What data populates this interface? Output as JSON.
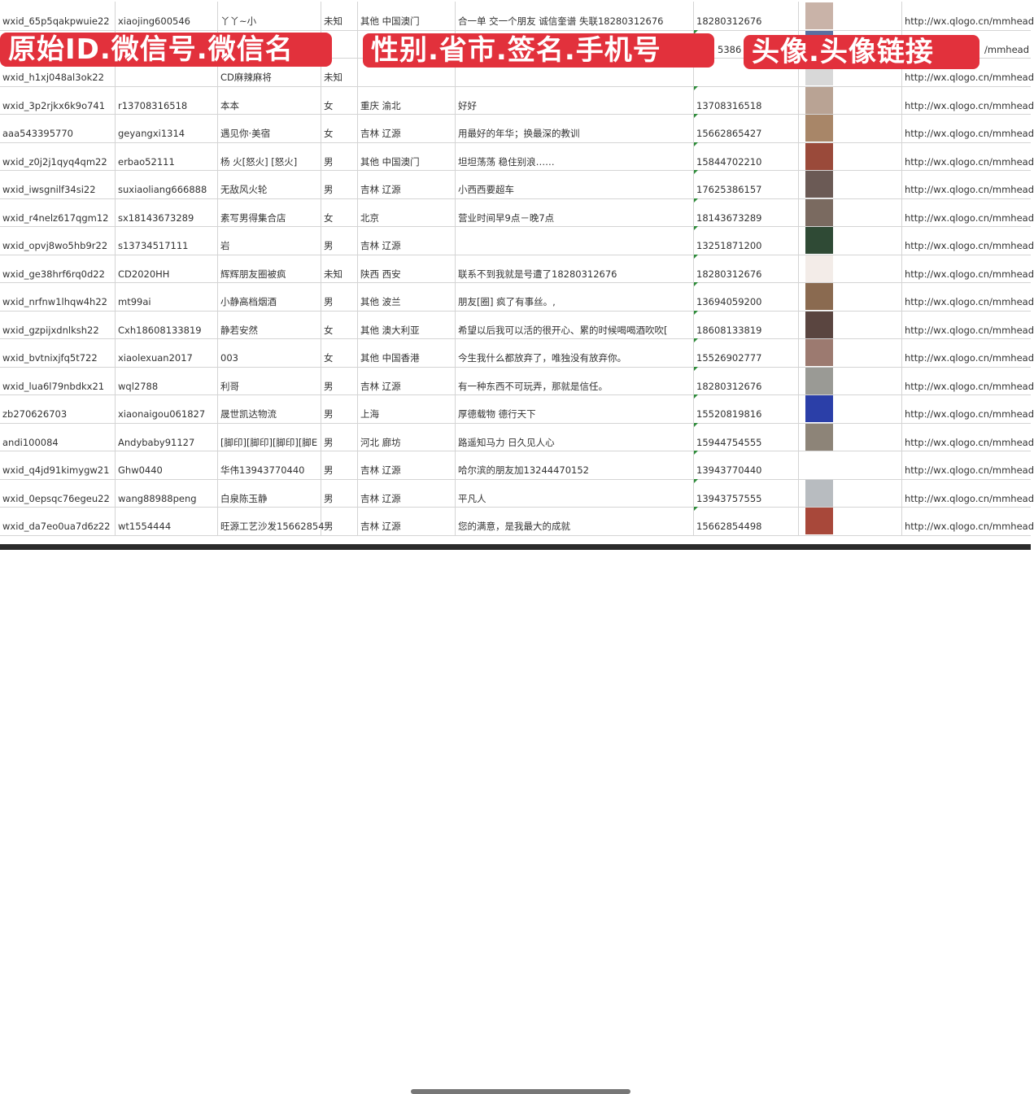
{
  "banners": [
    "原始ID.微信号.微信名",
    "性别.省市.签名.手机号",
    "头像.头像链接"
  ],
  "colors": {
    "banner": "#e2313c",
    "grid_line": "#d4d4d4",
    "text_marker": "#2e8b3a"
  },
  "rows": [
    {
      "id": "wxid_65p5qakpwuie22",
      "wxid": "xiaojing600546",
      "name": "丫丫~小",
      "gender": "未知",
      "region": "其他 中国澳门",
      "signature": "合一单 交一个朋友 诚信奎谱 失联18280312676",
      "phone": "18280312676",
      "avatar_color": "#c9b3a8",
      "url": "http://wx.qlogo.cn/mmhead"
    },
    {
      "id": "",
      "wxid": "",
      "name": "",
      "gender": "",
      "region": "",
      "signature": "",
      "phone": "5386",
      "avatar_color": "#5a6fa0",
      "url": "/mmhead"
    },
    {
      "id": "wxid_h1xj048al3ok22",
      "wxid": "",
      "name": "CD麻辣麻将",
      "gender": "未知",
      "region": "",
      "signature": "",
      "phone": "",
      "avatar_color": "#d8d8d8",
      "url": "http://wx.qlogo.cn/mmhead"
    },
    {
      "id": "wxid_3p2rjkx6k9o741",
      "wxid": "r13708316518",
      "name": "本本",
      "gender": "女",
      "region": "重庆 渝北",
      "signature": "好好",
      "phone": "13708316518",
      "avatar_color": "#b9a394",
      "url": "http://wx.qlogo.cn/mmhead"
    },
    {
      "id": "aaa543395770",
      "wxid": "geyangxi1314",
      "name": "遇见你·美宿",
      "gender": "女",
      "region": "吉林 辽源",
      "signature": "用最好的年华；换最深的教训",
      "phone": "15662865427",
      "avatar_color": "#a88668",
      "url": "http://wx.qlogo.cn/mmhead"
    },
    {
      "id": "wxid_z0j2j1qyq4qm22",
      "wxid": "erbao52111",
      "name": "杨 火[怒火] [怒火]",
      "gender": "男",
      "region": "其他 中国澳门",
      "signature": "坦坦荡荡 稳住别浪……",
      "phone": "15844702210",
      "avatar_color": "#9a4a3a",
      "url": "http://wx.qlogo.cn/mmhead"
    },
    {
      "id": "wxid_iwsgnilf34si22",
      "wxid": "suxiaoliang666888",
      "name": "无敌风火轮",
      "gender": "男",
      "region": "吉林 辽源",
      "signature": "小西西要超车",
      "phone": "17625386157",
      "avatar_color": "#6b5a55",
      "url": "http://wx.qlogo.cn/mmhead"
    },
    {
      "id": "wxid_r4nelz617qgm12",
      "wxid": "sx18143673289",
      "name": "素写男得集合店",
      "gender": "女",
      "region": "北京",
      "signature": "营业时间早9点－晚7点",
      "phone": "18143673289",
      "avatar_color": "#7a6a60",
      "url": "http://wx.qlogo.cn/mmhead"
    },
    {
      "id": "wxid_opvj8wo5hb9r22",
      "wxid": "s13734517111",
      "name": "岩",
      "gender": "男",
      "region": "吉林 辽源",
      "signature": "",
      "phone": "13251871200",
      "avatar_color": "#2f4a35",
      "url": "http://wx.qlogo.cn/mmhead"
    },
    {
      "id": "wxid_ge38hrf6rq0d22",
      "wxid": "CD2020HH",
      "name": "辉辉朋友圈被疯",
      "gender": "未知",
      "region": "陕西 西安",
      "signature": "联系不到我就是号遭了18280312676",
      "phone": "18280312676",
      "avatar_color": "#f3ece8",
      "url": "http://wx.qlogo.cn/mmhead"
    },
    {
      "id": "wxid_nrfnw1lhqw4h22",
      "wxid": "mt99ai",
      "name": "小静高档烟酒",
      "gender": "男",
      "region": "其他 波兰",
      "signature": "朋友[圈] 疯了有事丝。,",
      "phone": "13694059200",
      "avatar_color": "#8a6a50",
      "url": "http://wx.qlogo.cn/mmhead"
    },
    {
      "id": "wxid_gzpijxdnlksh22",
      "wxid": "Cxh18608133819",
      "name": "静若安然",
      "gender": "女",
      "region": "其他 澳大利亚",
      "signature": "希望以后我可以活的很开心、累的时候喝喝酒吹吹[",
      "phone": "18608133819",
      "avatar_color": "#5a4540",
      "url": "http://wx.qlogo.cn/mmhead"
    },
    {
      "id": "wxid_bvtnixjfq5t722",
      "wxid": "xiaolexuan2017",
      "name": "003",
      "gender": "女",
      "region": "其他 中国香港",
      "signature": "今生我什么都放弃了，唯独没有放弃你。",
      "phone": "15526902777",
      "avatar_color": "#9c7a70",
      "url": "http://wx.qlogo.cn/mmhead"
    },
    {
      "id": "wxid_lua6l79nbdkx21",
      "wxid": "wql2788",
      "name": "利哥",
      "gender": "男",
      "region": "吉林 辽源",
      "signature": "有一种东西不可玩弄，那就是信任。",
      "phone": "18280312676",
      "avatar_color": "#9a9a95",
      "url": "http://wx.qlogo.cn/mmhead"
    },
    {
      "id": "zb270626703",
      "wxid": "xiaonaigou061827",
      "name": "晟世凯达物流",
      "gender": "男",
      "region": "上海",
      "signature": "厚德载物 德行天下",
      "phone": "15520819816",
      "avatar_color": "#2b3fa8",
      "url": "http://wx.qlogo.cn/mmhead"
    },
    {
      "id": "andi100084",
      "wxid": "Andybaby91127",
      "name": "[脚印][脚印][脚印][脚E",
      "gender": "男",
      "region": "河北 廊坊",
      "signature": "路遥知马力 日久见人心",
      "phone": "15944754555",
      "avatar_color": "#8d8478",
      "url": "http://wx.qlogo.cn/mmhead"
    },
    {
      "id": "wxid_q4jd91kimygw21",
      "wxid": "Ghw0440",
      "name": "华伟13943770440",
      "gender": "男",
      "region": "吉林 辽源",
      "signature": "哈尔滨的朋友加13244470152",
      "phone": "13943770440",
      "avatar_color": "#ffffff",
      "url": "http://wx.qlogo.cn/mmhead"
    },
    {
      "id": "wxid_0epsqc76egeu22",
      "wxid": "wang88988peng",
      "name": "白泉陈玉静",
      "gender": "男",
      "region": "吉林 辽源",
      "signature": "平凡人",
      "phone": "13943757555",
      "avatar_color": "#b8bcc0",
      "url": "http://wx.qlogo.cn/mmhead"
    },
    {
      "id": "wxid_da7eo0ua7d6z22",
      "wxid": "wt1554444",
      "name": "旺源工艺沙发15662854",
      "gender": "男",
      "region": "吉林 辽源",
      "signature": "您的满意，是我最大的成就",
      "phone": "15662854498",
      "avatar_color": "#a8483a",
      "url": "http://wx.qlogo.cn/mmhead"
    }
  ]
}
